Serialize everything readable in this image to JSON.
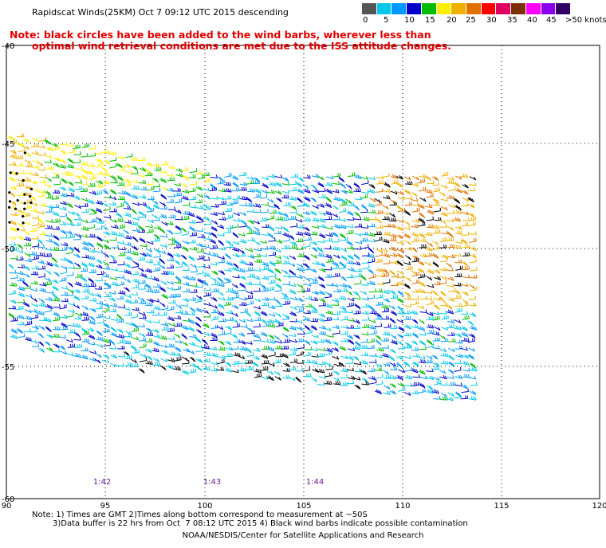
{
  "title": "Rapidscat Winds(25KM)  Oct  7 09:12 UTC 2015 descending",
  "note": {
    "line1": "Note: black circles have been added to the wind barbs, wherever less than",
    "line2": "optimal wind retrieval conditions are met due to the ISS attitude changes."
  },
  "colorbar": {
    "colors": [
      "#555555",
      "#00c8e8",
      "#0099ff",
      "#0000cc",
      "#00bb00",
      "#ffee00",
      "#f0b000",
      "#e07000",
      "#ff0000",
      "#e00060",
      "#7a3000",
      "#ff00ff",
      "#8800ee",
      "#330066"
    ],
    "labels": [
      "0",
      "5",
      "10",
      "15",
      "20",
      "25",
      "30",
      "35",
      "40",
      "45",
      ">50 knots"
    ]
  },
  "axes": {
    "x_ticks": [
      "90",
      "95",
      "100",
      "105",
      "110",
      "115",
      "120"
    ],
    "y_ticks": [
      "-40",
      "-45",
      "-50",
      "-55",
      "-60"
    ]
  },
  "time_labels": [
    "1:42",
    "1:43",
    "1:44"
  ],
  "footer": {
    "line1": "Note: 1) Times are GMT 2)Times along bottom correspond to measurement at ~50S",
    "line2": "3)Data buffer is 22 hrs from Oct  7 08:12 UTC 2015 4) Black wind barbs indicate possible contamination",
    "line3": "NOAA/NESDIS/Center for Satellite Applications and Research"
  }
}
